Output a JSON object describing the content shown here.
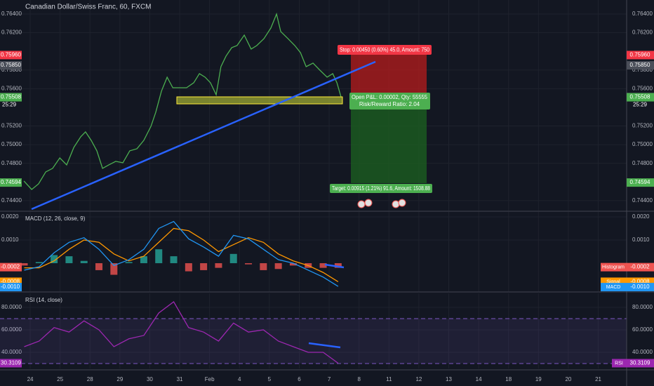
{
  "chart_data": [
    {
      "type": "line",
      "title": "Canadian Dollar/Swiss Franc, 60, FXCM",
      "color": "#4caf50",
      "x": [
        -0.21,
        0.05,
        0.28,
        0.52,
        0.75,
        0.99,
        1.22,
        1.46,
        1.69,
        1.85,
        2.04,
        2.23,
        2.42,
        2.63,
        2.86,
        3.1,
        3.33,
        3.57,
        3.8,
        4.04,
        4.2,
        4.39,
        4.58,
        4.77,
        5.0,
        5.23,
        5.47,
        5.66,
        5.85,
        6.03,
        6.22,
        6.38,
        6.55,
        6.74,
        6.92,
        7.16,
        7.39,
        7.58,
        7.82,
        8.05,
        8.24,
        8.38,
        8.62,
        8.85,
        9.04,
        9.23,
        9.46,
        9.69,
        9.93,
        10.12,
        10.26,
        10.4
      ],
      "values": [
        0.7461,
        0.7452,
        0.7458,
        0.74708,
        0.74746,
        0.74858,
        0.74783,
        0.74971,
        0.75084,
        0.75137,
        0.75046,
        0.74934,
        0.74746,
        0.74783,
        0.74821,
        0.74806,
        0.74934,
        0.74956,
        0.75046,
        0.75197,
        0.75347,
        0.75573,
        0.75723,
        0.7561,
        0.7561,
        0.7561,
        0.75663,
        0.75761,
        0.75723,
        0.75663,
        0.75535,
        0.75836,
        0.75949,
        0.76039,
        0.76062,
        0.76174,
        0.76024,
        0.76062,
        0.76137,
        0.7625,
        0.764,
        0.76212,
        0.76137,
        0.76062,
        0.75986,
        0.75836,
        0.75874,
        0.75798,
        0.75723,
        0.75761,
        0.75663,
        0.75508
      ],
      "xlim": [
        -1.01,
        19.95
      ],
      "ylim": [
        0.74294,
        0.7655
      ],
      "xticks": [
        {
          "value": 0,
          "label": "24"
        },
        {
          "value": 1,
          "label": "25"
        },
        {
          "value": 2,
          "label": "28"
        },
        {
          "value": 3,
          "label": "29"
        },
        {
          "value": 4,
          "label": "30"
        },
        {
          "value": 5,
          "label": "31"
        },
        {
          "value": 6,
          "label": "Feb"
        },
        {
          "value": 7,
          "label": "4"
        },
        {
          "value": 8,
          "label": "5"
        },
        {
          "value": 9,
          "label": "6"
        },
        {
          "value": 10,
          "label": "7"
        },
        {
          "value": 11,
          "label": "8"
        },
        {
          "value": 12,
          "label": "11"
        },
        {
          "value": 13,
          "label": "12"
        },
        {
          "value": 14,
          "label": "13"
        },
        {
          "value": 15,
          "label": "14"
        },
        {
          "value": 16,
          "label": "18"
        },
        {
          "value": 17,
          "label": "19"
        },
        {
          "value": 18,
          "label": "20"
        },
        {
          "value": 19,
          "label": "21"
        }
      ],
      "yticks": [
        {
          "value": 0.744,
          "label": "0.74400"
        },
        {
          "value": 0.748,
          "label": "0.74800"
        },
        {
          "value": 0.75,
          "label": "0.75000"
        },
        {
          "value": 0.752,
          "label": "0.75200"
        },
        {
          "value": 0.756,
          "label": "0.75600"
        },
        {
          "value": 0.758,
          "label": "0.75800"
        },
        {
          "value": 0.762,
          "label": "0.76200"
        },
        {
          "value": 0.764,
          "label": "0.76400"
        }
      ],
      "grid": true,
      "price_labels": [
        {
          "value": 0.7596,
          "label": "0.75960",
          "color": "#f23645"
        },
        {
          "value": 0.7585,
          "label": "0.75850",
          "color": "#4a4e59"
        },
        {
          "value": 0.7551,
          "label": "0.75510",
          "color": "#4a4e59"
        },
        {
          "value": 0.75508,
          "label": "0.75508",
          "color": "#4caf50"
        },
        {
          "value": 0.74594,
          "label": "0.74594",
          "color": "#4caf50"
        }
      ],
      "countdown": "25:29",
      "annotations": {
        "stop": "Stop: 0.00450 (0.60%) 45.0, Amount: 750",
        "open_pnl": "Open P&L: 0.00002, Qty: 55555",
        "risk_reward": "Risk/Reward Ratio: 2.04",
        "target": "Target: 0.00915 (1.21%) 91.6, Amount: 1508.88"
      }
    },
    {
      "type": "macd",
      "title": "MACD (12, 26, close, 9)",
      "x": [
        -0.2,
        0.3,
        0.8,
        1.3,
        1.8,
        2.3,
        2.8,
        3.3,
        3.8,
        4.3,
        4.8,
        5.3,
        5.8,
        6.3,
        6.8,
        7.3,
        7.8,
        8.3,
        8.8,
        9.3,
        9.8,
        10.3
      ],
      "ylim": [
        -0.00121,
        0.00221
      ],
      "yticks": [
        {
          "value": 0.001,
          "label": "0.0010"
        },
        {
          "value": 0.002,
          "label": "0.0020"
        }
      ],
      "series": [
        {
          "name": "Histogram",
          "type": "bar",
          "color": "#26a69a",
          "negative_color": "#ef5350",
          "last_label": "-0.0002",
          "values": [
            -0.0001,
            5e-05,
            0.00035,
            0.0003,
            0.0001,
            -0.0003,
            -0.0005,
            5e-05,
            0.0003,
            0.0006,
            0.0003,
            -0.00035,
            -0.0003,
            -0.0002,
            0.0004,
            -5e-05,
            -0.0003,
            -0.00025,
            -0.0001,
            -0.0002,
            -0.0002,
            -0.0002
          ]
        },
        {
          "name": "Signal",
          "type": "line",
          "color": "#ff9800",
          "last_label": "-0.0008",
          "values": [
            -0.0002,
            -0.0002,
            0.0001,
            0.0006,
            0.001,
            0.0009,
            0.0004,
            0.0001,
            0.0003,
            0.0009,
            0.0015,
            0.0014,
            0.001,
            0.0005,
            0.0008,
            0.0011,
            0.0009,
            0.0004,
            0.0001,
            -0.0001,
            -0.0004,
            -0.0008
          ]
        },
        {
          "name": "MACD",
          "type": "line",
          "color": "#2196f3",
          "last_label": "-0.0010",
          "values": [
            -0.0003,
            -0.00015,
            0.00045,
            0.0009,
            0.0011,
            0.0006,
            -0.0001,
            0.00015,
            0.0006,
            0.0015,
            0.0018,
            0.00105,
            0.0007,
            0.0003,
            0.0012,
            0.00105,
            0.0006,
            0.00015,
            0,
            -0.0003,
            -0.0006,
            -0.001
          ]
        }
      ]
    },
    {
      "type": "rsi",
      "title": "RSI (14, close)",
      "x": [
        -0.2,
        0.3,
        0.8,
        1.3,
        1.8,
        2.3,
        2.8,
        3.3,
        3.8,
        4.3,
        4.8,
        5.3,
        5.8,
        6.3,
        6.8,
        7.3,
        7.8,
        8.3,
        8.8,
        9.3,
        9.8,
        10.3
      ],
      "ylim": [
        25.6,
        92.5
      ],
      "yticks": [
        {
          "value": 40,
          "label": "40.0000"
        },
        {
          "value": 60,
          "label": "60.0000"
        },
        {
          "value": 80,
          "label": "80.0000"
        }
      ],
      "bands": [
        30,
        70
      ],
      "band_color": "#7e57c2",
      "series": [
        {
          "name": "RSI",
          "color": "#9c27b0",
          "last_label": "30.3109",
          "values": [
            45,
            50,
            62,
            58,
            68,
            60,
            45,
            52,
            55,
            75,
            85,
            62,
            58,
            50,
            66,
            58,
            60,
            50,
            45,
            40,
            40,
            30.3109
          ]
        }
      ]
    }
  ]
}
